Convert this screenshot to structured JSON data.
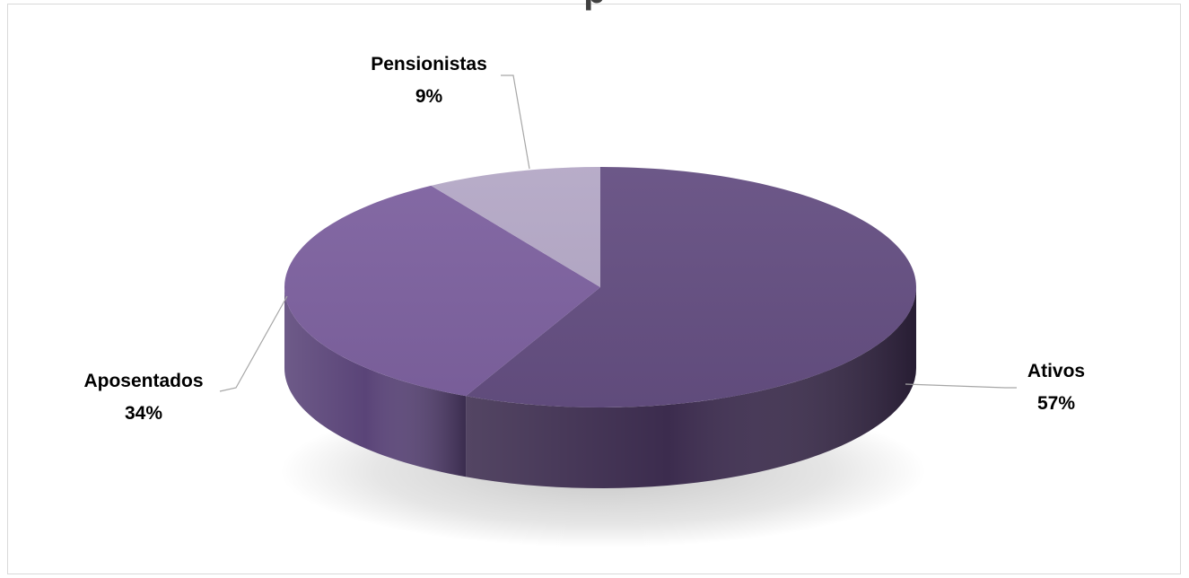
{
  "chart_data": {
    "type": "pie",
    "title": "",
    "title_visible_fragment": "p",
    "style": "3d",
    "categories": [
      "Ativos",
      "Aposentados",
      "Pensionistas"
    ],
    "values": [
      57,
      34,
      9
    ],
    "value_labels": [
      "57%",
      "34%",
      "9%"
    ],
    "colors": [
      "#654f82",
      "#7e62a0",
      "#b4a8c6"
    ],
    "side_colors": [
      "#3c2c4e",
      "#5a4478",
      "#8c7ba6"
    ],
    "legend": "none"
  }
}
